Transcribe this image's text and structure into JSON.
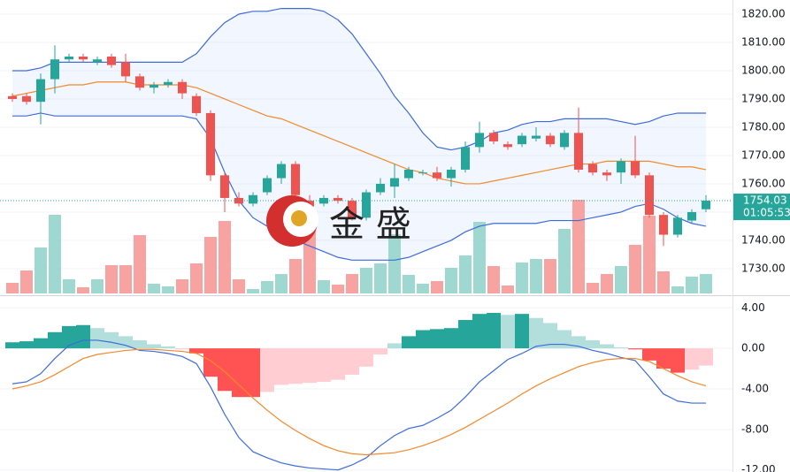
{
  "chart_data": [
    {
      "type": "candlestick",
      "open": [
        1791,
        1791,
        1789,
        1797,
        1804,
        1805,
        1803,
        1805,
        1803,
        1798,
        1794,
        1795,
        1796,
        1791,
        1785,
        1763,
        1755,
        1753,
        1757,
        1762,
        1767,
        1754,
        1753,
        1755,
        1754,
        1748,
        1757,
        1759,
        1762,
        1764,
        1764,
        1762,
        1765,
        1773,
        1778,
        1774,
        1774,
        1776,
        1777,
        1773,
        1778,
        1767,
        1764,
        1764,
        1768,
        1763,
        1749,
        1742,
        1747,
        1751
      ],
      "high": [
        1792,
        1792,
        1799,
        1809,
        1806,
        1806,
        1805,
        1806,
        1806,
        1799,
        1796,
        1797,
        1797,
        1792,
        1786,
        1764,
        1757,
        1757,
        1763,
        1768,
        1768,
        1756,
        1756,
        1756,
        1755,
        1758,
        1762,
        1767,
        1766,
        1765,
        1766,
        1766,
        1775,
        1782,
        1779,
        1775,
        1778,
        1780,
        1778,
        1779,
        1787,
        1768,
        1765,
        1769,
        1777,
        1764,
        1750,
        1749,
        1751,
        1756
      ],
      "low": [
        1789,
        1788,
        1781,
        1792,
        1803,
        1803,
        1802,
        1801,
        1796,
        1793,
        1792,
        1794,
        1790,
        1784,
        1761,
        1750,
        1752,
        1752,
        1756,
        1760,
        1755,
        1751,
        1752,
        1753,
        1747,
        1747,
        1756,
        1755,
        1761,
        1763,
        1761,
        1759,
        1764,
        1771,
        1774,
        1772,
        1773,
        1775,
        1773,
        1772,
        1764,
        1763,
        1761,
        1760,
        1762,
        1748,
        1738,
        1741,
        1746,
        1750
      ],
      "close": [
        1790,
        1789,
        1797,
        1804,
        1805,
        1804,
        1804,
        1802,
        1798,
        1794,
        1795,
        1796,
        1792,
        1785,
        1763,
        1755,
        1753,
        1756,
        1762,
        1767,
        1756,
        1752,
        1755,
        1754,
        1748,
        1757,
        1760,
        1762,
        1765,
        1764,
        1762,
        1765,
        1773,
        1778,
        1775,
        1773,
        1777,
        1777,
        1774,
        1778,
        1765,
        1764,
        1763,
        1768,
        1763,
        1749,
        1742,
        1748,
        1750,
        1754.03
      ],
      "volume": [
        12,
        26,
        52,
        89,
        16,
        7,
        16,
        32,
        32,
        66,
        11,
        8,
        16,
        34,
        64,
        82,
        16,
        5,
        14,
        22,
        39,
        72,
        15,
        10,
        22,
        29,
        34,
        67,
        21,
        11,
        14,
        29,
        43,
        81,
        31,
        9,
        35,
        39,
        39,
        73,
        106,
        12,
        22,
        31,
        55,
        88,
        25,
        8,
        19,
        22
      ],
      "bollinger": [
        {
          "name": "upper",
          "color": "#3d6bd9",
          "values": [
            1800,
            1800,
            1801,
            1803,
            1803,
            1803,
            1803,
            1803,
            1803,
            1803,
            1803,
            1803,
            1803,
            1806,
            1812,
            1817,
            1820,
            1821,
            1821,
            1822,
            1822,
            1822,
            1821,
            1818,
            1813,
            1806,
            1799,
            1791,
            1785,
            1778,
            1773,
            1772,
            1773,
            1775,
            1778,
            1779,
            1781,
            1782,
            1782,
            1783,
            1783,
            1783,
            1783,
            1782,
            1781,
            1782,
            1784,
            1785,
            1785,
            1785
          ]
        },
        {
          "name": "middle",
          "color": "#f0892c",
          "values": [
            1791,
            1792,
            1793,
            1794,
            1795,
            1795,
            1796,
            1796,
            1796,
            1795,
            1795,
            1795,
            1795,
            1794,
            1792,
            1790,
            1788,
            1786,
            1784,
            1783,
            1781,
            1779,
            1777,
            1775,
            1773,
            1771,
            1769,
            1767,
            1765,
            1764,
            1762,
            1761,
            1760,
            1760,
            1761,
            1762,
            1763,
            1764,
            1765,
            1766,
            1767,
            1767,
            1768,
            1768,
            1768,
            1768,
            1767,
            1766,
            1766,
            1765
          ]
        },
        {
          "name": "lower",
          "color": "#3d6bd9",
          "values": [
            1784,
            1784,
            1785,
            1784,
            1784,
            1784,
            1784,
            1784,
            1784,
            1784,
            1784,
            1784,
            1784,
            1783,
            1776,
            1764,
            1754,
            1748,
            1745,
            1742,
            1740,
            1738,
            1736,
            1734,
            1733,
            1733,
            1733,
            1733,
            1734,
            1736,
            1738,
            1740,
            1743,
            1745,
            1746,
            1746,
            1746,
            1746,
            1747,
            1747,
            1747,
            1748,
            1749,
            1750,
            1752,
            1753,
            1751,
            1748,
            1746,
            1745
          ]
        }
      ],
      "up_color": "#26a69a",
      "down_color": "#ef5350",
      "ylim": [
        1720.6,
        1825
      ],
      "yticks": [
        {
          "value": 1820,
          "label": "1820.00"
        },
        {
          "value": 1810,
          "label": "1810.00"
        },
        {
          "value": 1800,
          "label": "1800.00"
        },
        {
          "value": 1790,
          "label": "1790.00"
        },
        {
          "value": 1780,
          "label": "1780.00"
        },
        {
          "value": 1770,
          "label": "1770.00"
        },
        {
          "value": 1760,
          "label": "1760.00"
        },
        {
          "value": 1750,
          "label": "1750.00"
        },
        {
          "value": 1740,
          "label": "1740.00"
        },
        {
          "value": 1730,
          "label": "1730.00"
        }
      ],
      "last_price": {
        "value": 1754.03,
        "label": "1754.03"
      },
      "countdown": "01:05:53",
      "watermark": "金 盛",
      "grid": true
    },
    {
      "type": "macd",
      "histogram": [
        0.6,
        0.7,
        1.0,
        1.6,
        2.2,
        2.3,
        2.0,
        1.6,
        1.2,
        0.8,
        0.4,
        0.2,
        -0.1,
        -0.5,
        -2.8,
        -4.2,
        -4.8,
        -4.8,
        -4.3,
        -3.6,
        -3.5,
        -3.4,
        -3.3,
        -3.1,
        -2.6,
        -1.8,
        -0.6,
        0.5,
        1.2,
        1.8,
        1.9,
        2.0,
        2.8,
        3.4,
        3.5,
        3.3,
        3.4,
        3.0,
        2.5,
        1.8,
        1.2,
        0.8,
        0.4,
        0.1,
        -0.1,
        -1.2,
        -2.0,
        -2.4,
        -2.1,
        -1.7
      ],
      "series": [
        {
          "name": "DIF",
          "color": "#3d6bd9",
          "values": [
            -3.5,
            -3.3,
            -2.5,
            -1.0,
            0.3,
            0.8,
            0.8,
            0.6,
            0.3,
            -0.2,
            -0.3,
            -0.5,
            -0.8,
            -1.5,
            -3.8,
            -6.5,
            -8.8,
            -10.2,
            -10.8,
            -11.3,
            -11.6,
            -11.8,
            -11.9,
            -12.0,
            -11.5,
            -10.8,
            -9.6,
            -8.6,
            -7.9,
            -7.6,
            -6.9,
            -6.1,
            -4.8,
            -3.3,
            -2.2,
            -1.1,
            -0.5,
            0.2,
            0.4,
            0.4,
            0.2,
            -0.2,
            -0.5,
            -0.9,
            -1.2,
            -2.8,
            -4.5,
            -5.2,
            -5.4,
            -5.4
          ]
        },
        {
          "name": "DEA",
          "color": "#f0892c",
          "values": [
            -4.0,
            -3.7,
            -3.3,
            -2.6,
            -1.8,
            -1.0,
            -0.6,
            -0.4,
            -0.2,
            -0.1,
            -0.1,
            -0.2,
            -0.3,
            -0.5,
            -1.2,
            -2.3,
            -3.6,
            -4.9,
            -6.1,
            -7.2,
            -8.1,
            -8.9,
            -9.6,
            -10.1,
            -10.4,
            -10.5,
            -10.4,
            -10.3,
            -10.0,
            -9.6,
            -9.1,
            -8.5,
            -7.8,
            -7.0,
            -6.2,
            -5.4,
            -4.5,
            -3.7,
            -3.0,
            -2.4,
            -1.8,
            -1.4,
            -1.1,
            -1.0,
            -1.0,
            -1.3,
            -2.0,
            -2.7,
            -3.3,
            -3.7
          ]
        }
      ],
      "ylim": [
        -12.2,
        5.07
      ],
      "yticks": [
        {
          "value": 4,
          "label": "4.00"
        },
        {
          "value": 0,
          "label": "0.00"
        },
        {
          "value": -4,
          "label": "-4.00"
        },
        {
          "value": -8,
          "label": "-8.00"
        },
        {
          "value": -12,
          "label": "-12.00"
        }
      ]
    }
  ]
}
